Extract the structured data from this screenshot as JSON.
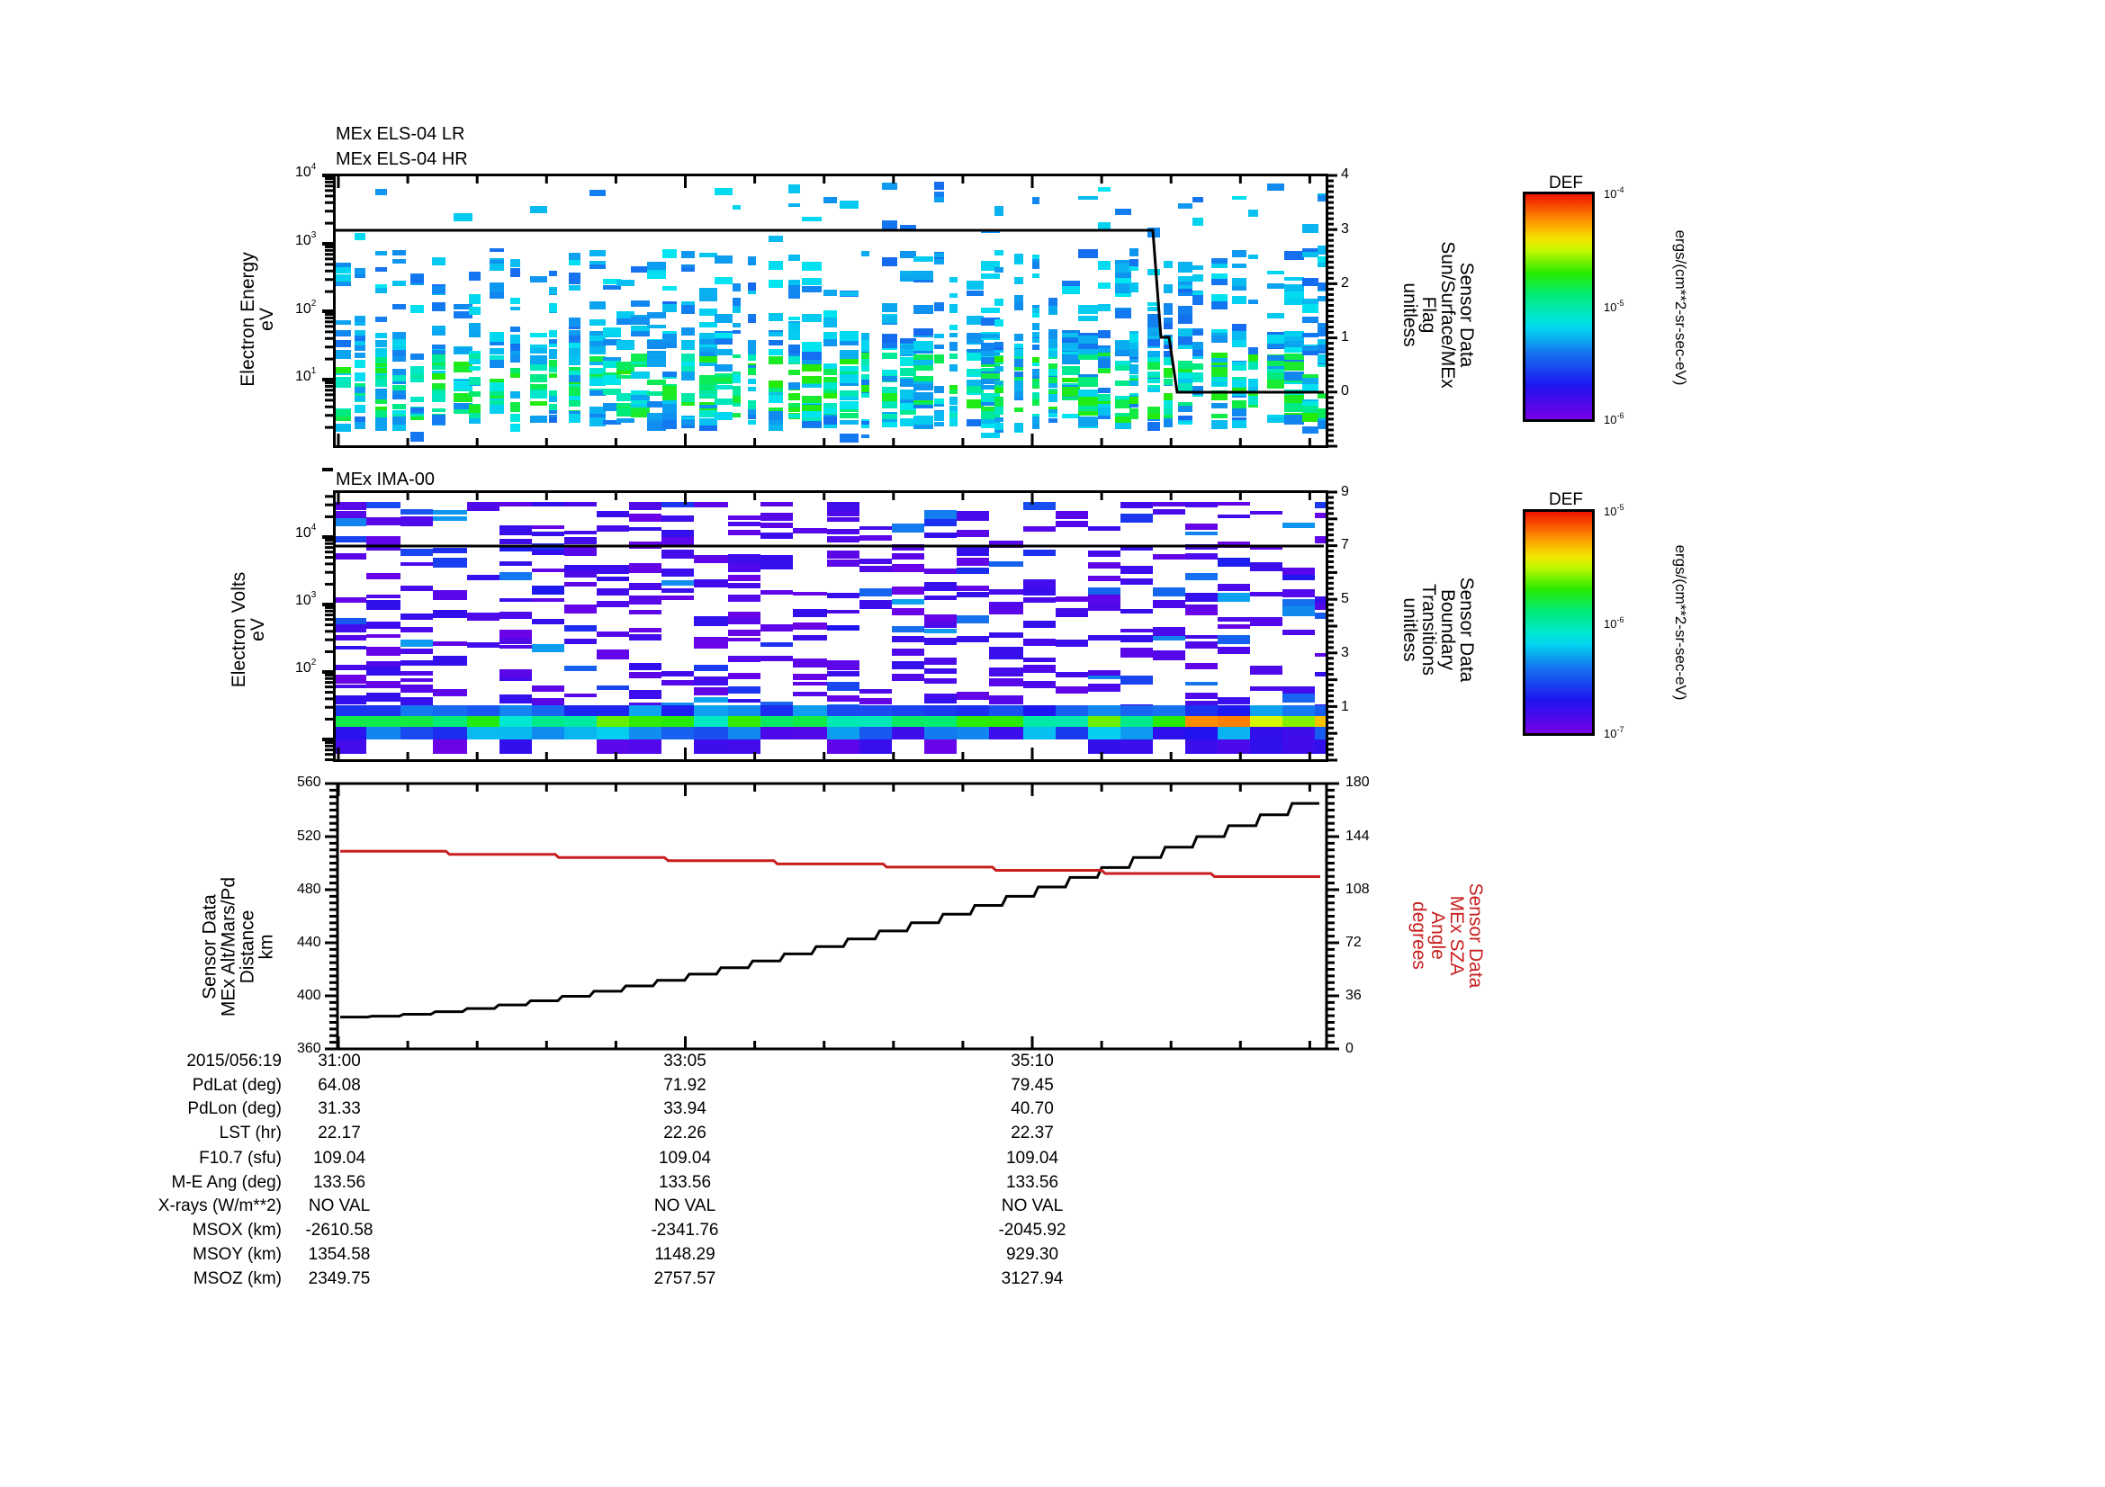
{
  "chart_data": [
    {
      "type": "heatmap",
      "titles": [
        "MEx ELS-04 LR",
        "MEx ELS-04 HR"
      ],
      "ylabel": [
        "Electron Energy",
        "eV"
      ],
      "yscale": "log",
      "yticks": [
        "10^1",
        "10^2",
        "10^3",
        "10^4"
      ],
      "ylim_approx": [
        1,
        10000
      ],
      "colorbar": {
        "title": "DEF",
        "units": "ergs/(cm**2-sr-sec-eV)",
        "ticks": [
          "10^-6",
          "10^-5",
          "10^-4"
        ],
        "range": [
          "1e-6",
          "1e-4"
        ]
      },
      "overlay_line": {
        "name": "Sensor Data Sun/Surface/MEx Flag",
        "ylabel_right": [
          "Sensor Data",
          "Sun/Surface/MEx",
          "Flag",
          "unitless"
        ],
        "right_ticks": [
          0,
          1,
          2,
          3,
          4
        ],
        "right_ylim": [
          -1,
          4
        ],
        "points": [
          [
            "31:00",
            3
          ],
          [
            "36:05",
            3
          ],
          [
            "36:09",
            1
          ],
          [
            "36:12",
            1
          ],
          [
            "36:20",
            0
          ],
          [
            "37:20",
            0
          ]
        ]
      },
      "dominant_colors": "blue/cyan/green blocks concentrated between 5 eV and 100 eV, sparse blue above 100 eV"
    },
    {
      "type": "heatmap",
      "titles": [
        "MEx IMA-00"
      ],
      "ylabel": [
        "Electron Volts",
        "eV"
      ],
      "yscale": "log",
      "yticks": [
        "10^2",
        "10^3",
        "10^4"
      ],
      "colorbar": {
        "title": "DEF",
        "units": "ergs/(cm**2-sr-sec-eV)",
        "ticks": [
          "10^-7",
          "10^-6",
          "10^-5"
        ],
        "range": [
          "1e-7",
          "1e-5"
        ]
      },
      "overlay_line": {
        "name": "Sensor Data Boundary Transitions",
        "ylabel_right": [
          "Sensor Data",
          "Boundary",
          "Transitions",
          "unitless"
        ],
        "right_ticks": [
          1,
          3,
          5,
          7,
          9
        ],
        "right_ylim": [
          -1,
          9
        ],
        "points": [
          [
            "31:00",
            7
          ],
          [
            "37:20",
            7
          ]
        ]
      },
      "dominant_colors": "purple/blue stripes across energies; green-yellow-orange band near lowest energies, red near end"
    },
    {
      "type": "line",
      "ylabel": [
        "Sensor Data",
        "MEx Alt/Mars/Pd",
        "Distance",
        "km"
      ],
      "ylim": [
        360,
        560
      ],
      "yticks": [
        360,
        400,
        440,
        480,
        520,
        560
      ],
      "ylabel_right": [
        "Sensor Data",
        "MEx SZA",
        "Angle",
        "degrees"
      ],
      "ylim_right": [
        0,
        180
      ],
      "yticks_right": [
        0,
        36,
        72,
        108,
        144,
        180
      ],
      "x": [
        "31:00",
        "31:25",
        "31:50",
        "32:15",
        "32:40",
        "33:05",
        "33:30",
        "33:55",
        "34:20",
        "34:45",
        "35:10",
        "35:35",
        "36:00",
        "36:25",
        "36:50",
        "37:15"
      ],
      "series": [
        {
          "name": "MEx Alt/Mars/Pd Distance (km)",
          "color": "#000000",
          "axis": "left",
          "values": [
            384,
            386,
            390,
            395,
            400,
            405,
            412,
            418,
            426,
            435,
            446,
            458,
            472,
            488,
            505,
            525
          ]
        },
        {
          "name": "MEx SZA Angle (degrees)",
          "color": "#c81e1e",
          "axis": "right",
          "values": [
            135,
            134,
            133,
            132,
            131,
            130.5,
            129.5,
            128.5,
            127.5,
            126.5,
            125.5,
            124.5,
            123.5,
            122.5,
            121.5,
            120.5
          ]
        }
      ]
    }
  ],
  "panels": {
    "p1": {
      "title1": "MEx ELS-04 LR",
      "title2": "MEx ELS-04 HR",
      "ylabel1": "Electron Energy",
      "ylabel2": "eV",
      "rlabel1": "Sensor Data",
      "rlabel2": "Sun/Surface/MEx",
      "rlabel3": "Flag",
      "rlabel4": "unitless",
      "ytick_base": "10",
      "yticks": [
        "4",
        "3",
        "2",
        "1"
      ],
      "rticks": [
        "4",
        "3",
        "2",
        "1",
        "0"
      ],
      "cbar_title": "DEF",
      "cbar_ticks": [
        "-4",
        "-5",
        "-6"
      ],
      "cbar_units": "ergs/(cm**2-sr-sec-eV)"
    },
    "p2": {
      "title1": "MEx IMA-00",
      "ylabel1": "Electron Volts",
      "ylabel2": "eV",
      "rlabel1": "Sensor Data",
      "rlabel2": "Boundary",
      "rlabel3": "Transitions",
      "rlabel4": "unitless",
      "ytick_base": "10",
      "yticks": [
        "4",
        "3",
        "2"
      ],
      "rticks": [
        "9",
        "7",
        "5",
        "3",
        "1"
      ],
      "cbar_title": "DEF",
      "cbar_ticks": [
        "-5",
        "-6",
        "-7"
      ],
      "cbar_units": "ergs/(cm**2-sr-sec-eV)"
    },
    "p3": {
      "ylabel1": "Sensor Data",
      "ylabel2": "MEx Alt/Mars/Pd",
      "ylabel3": "Distance",
      "ylabel4": "km",
      "rlabel1": "Sensor Data",
      "rlabel2": "MEx SZA",
      "rlabel3": "Angle",
      "rlabel4": "degrees",
      "yticks": [
        "560",
        "520",
        "480",
        "440",
        "400",
        "360"
      ],
      "rticks": [
        "180",
        "144",
        "108",
        "72",
        "36",
        "0"
      ]
    }
  },
  "annotation": {
    "labels": [
      "2015/056:19",
      "PdLat (deg)",
      "PdLon (deg)",
      "LST (hr)",
      "F10.7 (sfu)",
      "M-E Ang (deg)",
      "X-rays (W/m**2)",
      "MSOX (km)",
      "MSOY (km)",
      "MSOZ (km)"
    ],
    "col1": [
      "31:00",
      "64.08",
      "31.33",
      "22.17",
      "109.04",
      "133.56",
      "NO VAL",
      "-2610.58",
      "1354.58",
      "2349.75"
    ],
    "col2": [
      "33:05",
      "71.92",
      "33.94",
      "22.26",
      "109.04",
      "133.56",
      "NO VAL",
      "-2341.76",
      "1148.29",
      "2757.57"
    ],
    "col3": [
      "35:10",
      "79.45",
      "40.70",
      "22.37",
      "109.04",
      "133.56",
      "NO VAL",
      "-2045.92",
      "929.30",
      "3127.94"
    ]
  },
  "colors": {
    "axis": "#000000",
    "alt_line": "#000000",
    "sza_line": "#c81e1e",
    "sza_label": "#c81e1e"
  }
}
